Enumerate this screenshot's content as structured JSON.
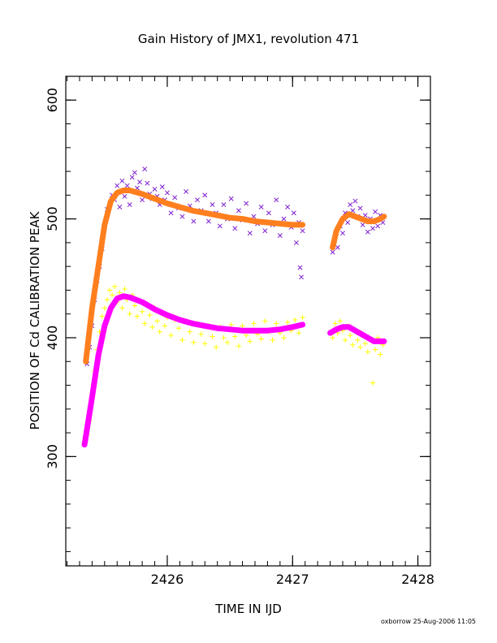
{
  "chart_data": {
    "type": "scatter",
    "title": "Gain History of JMX1, revolution 471",
    "xlabel": "TIME IN IJD",
    "ylabel": "POSITION OF Cd CALIBRATION PEAK",
    "footer": "oxborrow 25-Aug-2006 11:05",
    "xlim": [
      2425.19,
      2428.1
    ],
    "ylim": [
      208,
      620
    ],
    "x_major_ticks": [
      2426,
      2427,
      2428
    ],
    "x_tick_labels": [
      "2426",
      "2427",
      "2428"
    ],
    "x_minor_step": 0.1,
    "y_major_ticks": [
      300,
      400,
      500,
      600
    ],
    "y_tick_labels": [
      "300",
      "400",
      "500",
      "600"
    ],
    "y_minor_step": 20,
    "grid": false,
    "series": [
      {
        "role": "high-peak-measurements",
        "marker": "x",
        "color": "#7f1fcf",
        "points": [
          [
            2425.36,
            378
          ],
          [
            2425.38,
            392
          ],
          [
            2425.4,
            410
          ],
          [
            2425.42,
            432
          ],
          [
            2425.44,
            448
          ],
          [
            2425.46,
            460
          ],
          [
            2425.48,
            475
          ],
          [
            2425.5,
            492
          ],
          [
            2425.52,
            508
          ],
          [
            2425.54,
            512
          ],
          [
            2425.56,
            520
          ],
          [
            2425.58,
            516
          ],
          [
            2425.6,
            528
          ],
          [
            2425.62,
            510
          ],
          [
            2425.64,
            532
          ],
          [
            2425.66,
            519
          ],
          [
            2425.68,
            528
          ],
          [
            2425.7,
            512
          ],
          [
            2425.72,
            535
          ],
          [
            2425.74,
            539
          ],
          [
            2425.76,
            526
          ],
          [
            2425.78,
            531
          ],
          [
            2425.8,
            516
          ],
          [
            2425.82,
            542
          ],
          [
            2425.84,
            530
          ],
          [
            2425.86,
            521
          ],
          [
            2425.88,
            517
          ],
          [
            2425.9,
            525
          ],
          [
            2425.92,
            519
          ],
          [
            2425.94,
            512
          ],
          [
            2425.96,
            527
          ],
          [
            2425.98,
            516
          ],
          [
            2426.0,
            522
          ],
          [
            2426.03,
            505
          ],
          [
            2426.06,
            518
          ],
          [
            2426.09,
            509
          ],
          [
            2426.12,
            502
          ],
          [
            2426.15,
            523
          ],
          [
            2426.18,
            511
          ],
          [
            2426.21,
            498
          ],
          [
            2426.24,
            516
          ],
          [
            2426.27,
            507
          ],
          [
            2426.3,
            520
          ],
          [
            2426.33,
            498
          ],
          [
            2426.36,
            512
          ],
          [
            2426.39,
            505
          ],
          [
            2426.42,
            494
          ],
          [
            2426.45,
            512
          ],
          [
            2426.48,
            500
          ],
          [
            2426.51,
            517
          ],
          [
            2426.54,
            492
          ],
          [
            2426.57,
            507
          ],
          [
            2426.6,
            499
          ],
          [
            2426.63,
            513
          ],
          [
            2426.66,
            488
          ],
          [
            2426.69,
            502
          ],
          [
            2426.72,
            496
          ],
          [
            2426.75,
            510
          ],
          [
            2426.78,
            490
          ],
          [
            2426.81,
            505
          ],
          [
            2426.84,
            495
          ],
          [
            2426.87,
            516
          ],
          [
            2426.9,
            486
          ],
          [
            2426.93,
            500
          ],
          [
            2426.96,
            510
          ],
          [
            2426.99,
            493
          ],
          [
            2427.01,
            505
          ],
          [
            2427.03,
            480
          ],
          [
            2427.05,
            497
          ],
          [
            2427.06,
            459
          ],
          [
            2427.07,
            451
          ],
          [
            2427.08,
            490
          ],
          [
            2427.32,
            472
          ],
          [
            2427.34,
            485
          ],
          [
            2427.36,
            476
          ],
          [
            2427.38,
            494
          ],
          [
            2427.4,
            488
          ],
          [
            2427.42,
            505
          ],
          [
            2427.44,
            497
          ],
          [
            2427.46,
            512
          ],
          [
            2427.48,
            507
          ],
          [
            2427.5,
            515
          ],
          [
            2427.52,
            502
          ],
          [
            2427.54,
            509
          ],
          [
            2427.56,
            495
          ],
          [
            2427.58,
            503
          ],
          [
            2427.6,
            489
          ],
          [
            2427.62,
            500
          ],
          [
            2427.64,
            492
          ],
          [
            2427.66,
            506
          ],
          [
            2427.68,
            494
          ],
          [
            2427.7,
            503
          ],
          [
            2427.72,
            497
          ]
        ]
      },
      {
        "role": "high-peak-fit",
        "marker": "line",
        "color": "#ff7f1f",
        "segments": [
          [
            [
              2425.35,
              380
            ],
            [
              2425.4,
              425
            ],
            [
              2425.45,
              460
            ],
            [
              2425.5,
              495
            ],
            [
              2425.55,
              515
            ],
            [
              2425.6,
              522
            ],
            [
              2425.65,
              524
            ],
            [
              2425.7,
              524
            ],
            [
              2425.8,
              521
            ],
            [
              2425.9,
              517
            ],
            [
              2426.0,
              513
            ],
            [
              2426.1,
              510
            ],
            [
              2426.2,
              507
            ],
            [
              2426.3,
              505
            ],
            [
              2426.4,
              503
            ],
            [
              2426.5,
              501
            ],
            [
              2426.6,
              500
            ],
            [
              2426.7,
              498
            ],
            [
              2426.8,
              497
            ],
            [
              2426.9,
              496
            ],
            [
              2427.0,
              495
            ],
            [
              2427.08,
              495
            ]
          ],
          [
            [
              2427.32,
              476
            ],
            [
              2427.35,
              490
            ],
            [
              2427.4,
              500
            ],
            [
              2427.45,
              504
            ],
            [
              2427.5,
              502
            ],
            [
              2427.55,
              500
            ],
            [
              2427.6,
              498
            ],
            [
              2427.65,
              498
            ],
            [
              2427.7,
              500
            ],
            [
              2427.73,
              502
            ]
          ]
        ]
      },
      {
        "role": "low-peak-measurements",
        "marker": "+",
        "color": "#ffff00",
        "points": [
          [
            2425.36,
            318
          ],
          [
            2425.38,
            330
          ],
          [
            2425.4,
            350
          ],
          [
            2425.42,
            372
          ],
          [
            2425.44,
            390
          ],
          [
            2425.46,
            405
          ],
          [
            2425.48,
            418
          ],
          [
            2425.5,
            425
          ],
          [
            2425.52,
            432
          ],
          [
            2425.54,
            440
          ],
          [
            2425.56,
            436
          ],
          [
            2425.58,
            443
          ],
          [
            2425.6,
            430
          ],
          [
            2425.62,
            438
          ],
          [
            2425.64,
            425
          ],
          [
            2425.66,
            441
          ],
          [
            2425.68,
            432
          ],
          [
            2425.7,
            420
          ],
          [
            2425.72,
            436
          ],
          [
            2425.74,
            427
          ],
          [
            2425.76,
            418
          ],
          [
            2425.78,
            431
          ],
          [
            2425.8,
            422
          ],
          [
            2425.82,
            412
          ],
          [
            2425.84,
            428
          ],
          [
            2425.86,
            419
          ],
          [
            2425.88,
            409
          ],
          [
            2425.9,
            425
          ],
          [
            2425.92,
            414
          ],
          [
            2425.94,
            405
          ],
          [
            2425.96,
            420
          ],
          [
            2425.98,
            410
          ],
          [
            2426.0,
            417
          ],
          [
            2426.03,
            402
          ],
          [
            2426.06,
            415
          ],
          [
            2426.09,
            408
          ],
          [
            2426.12,
            398
          ],
          [
            2426.15,
            414
          ],
          [
            2426.18,
            405
          ],
          [
            2426.21,
            396
          ],
          [
            2426.24,
            412
          ],
          [
            2426.27,
            403
          ],
          [
            2426.3,
            395
          ],
          [
            2426.33,
            410
          ],
          [
            2426.36,
            401
          ],
          [
            2426.39,
            392
          ],
          [
            2426.42,
            409
          ],
          [
            2426.45,
            400
          ],
          [
            2426.48,
            396
          ],
          [
            2426.51,
            411
          ],
          [
            2426.54,
            401
          ],
          [
            2426.57,
            393
          ],
          [
            2426.6,
            410
          ],
          [
            2426.63,
            402
          ],
          [
            2426.66,
            397
          ],
          [
            2426.69,
            412
          ],
          [
            2426.72,
            403
          ],
          [
            2426.75,
            399
          ],
          [
            2426.78,
            414
          ],
          [
            2426.81,
            405
          ],
          [
            2426.84,
            398
          ],
          [
            2426.87,
            412
          ],
          [
            2426.9,
            404
          ],
          [
            2426.93,
            400
          ],
          [
            2426.96,
            413
          ],
          [
            2426.99,
            406
          ],
          [
            2427.02,
            415
          ],
          [
            2427.05,
            404
          ],
          [
            2427.08,
            417
          ],
          [
            2427.32,
            400
          ],
          [
            2427.34,
            412
          ],
          [
            2427.36,
            404
          ],
          [
            2427.38,
            414
          ],
          [
            2427.4,
            406
          ],
          [
            2427.42,
            398
          ],
          [
            2427.44,
            410
          ],
          [
            2427.46,
            402
          ],
          [
            2427.48,
            394
          ],
          [
            2427.5,
            405
          ],
          [
            2427.52,
            398
          ],
          [
            2427.54,
            392
          ],
          [
            2427.56,
            402
          ],
          [
            2427.58,
            395
          ],
          [
            2427.6,
            388
          ],
          [
            2427.62,
            398
          ],
          [
            2427.64,
            362
          ],
          [
            2427.66,
            390
          ],
          [
            2427.68,
            400
          ],
          [
            2427.7,
            386
          ],
          [
            2427.72,
            394
          ]
        ]
      },
      {
        "role": "low-peak-fit",
        "marker": "line",
        "color": "#ff00ff",
        "segments": [
          [
            [
              2425.34,
              310
            ],
            [
              2425.4,
              350
            ],
            [
              2425.45,
              385
            ],
            [
              2425.5,
              410
            ],
            [
              2425.55,
              425
            ],
            [
              2425.6,
              433
            ],
            [
              2425.65,
              435
            ],
            [
              2425.7,
              434
            ],
            [
              2425.8,
              430
            ],
            [
              2425.9,
              424
            ],
            [
              2426.0,
              419
            ],
            [
              2426.1,
              415
            ],
            [
              2426.2,
              412
            ],
            [
              2426.3,
              410
            ],
            [
              2426.4,
              408
            ],
            [
              2426.5,
              407
            ],
            [
              2426.6,
              406
            ],
            [
              2426.7,
              406
            ],
            [
              2426.8,
              406
            ],
            [
              2426.9,
              407
            ],
            [
              2427.0,
              409
            ],
            [
              2427.08,
              411
            ]
          ],
          [
            [
              2427.3,
              404
            ],
            [
              2427.35,
              407
            ],
            [
              2427.4,
              409
            ],
            [
              2427.45,
              409
            ],
            [
              2427.5,
              406
            ],
            [
              2427.55,
              403
            ],
            [
              2427.6,
              400
            ],
            [
              2427.65,
              397
            ],
            [
              2427.7,
              397
            ],
            [
              2427.73,
              397
            ]
          ]
        ]
      }
    ]
  }
}
